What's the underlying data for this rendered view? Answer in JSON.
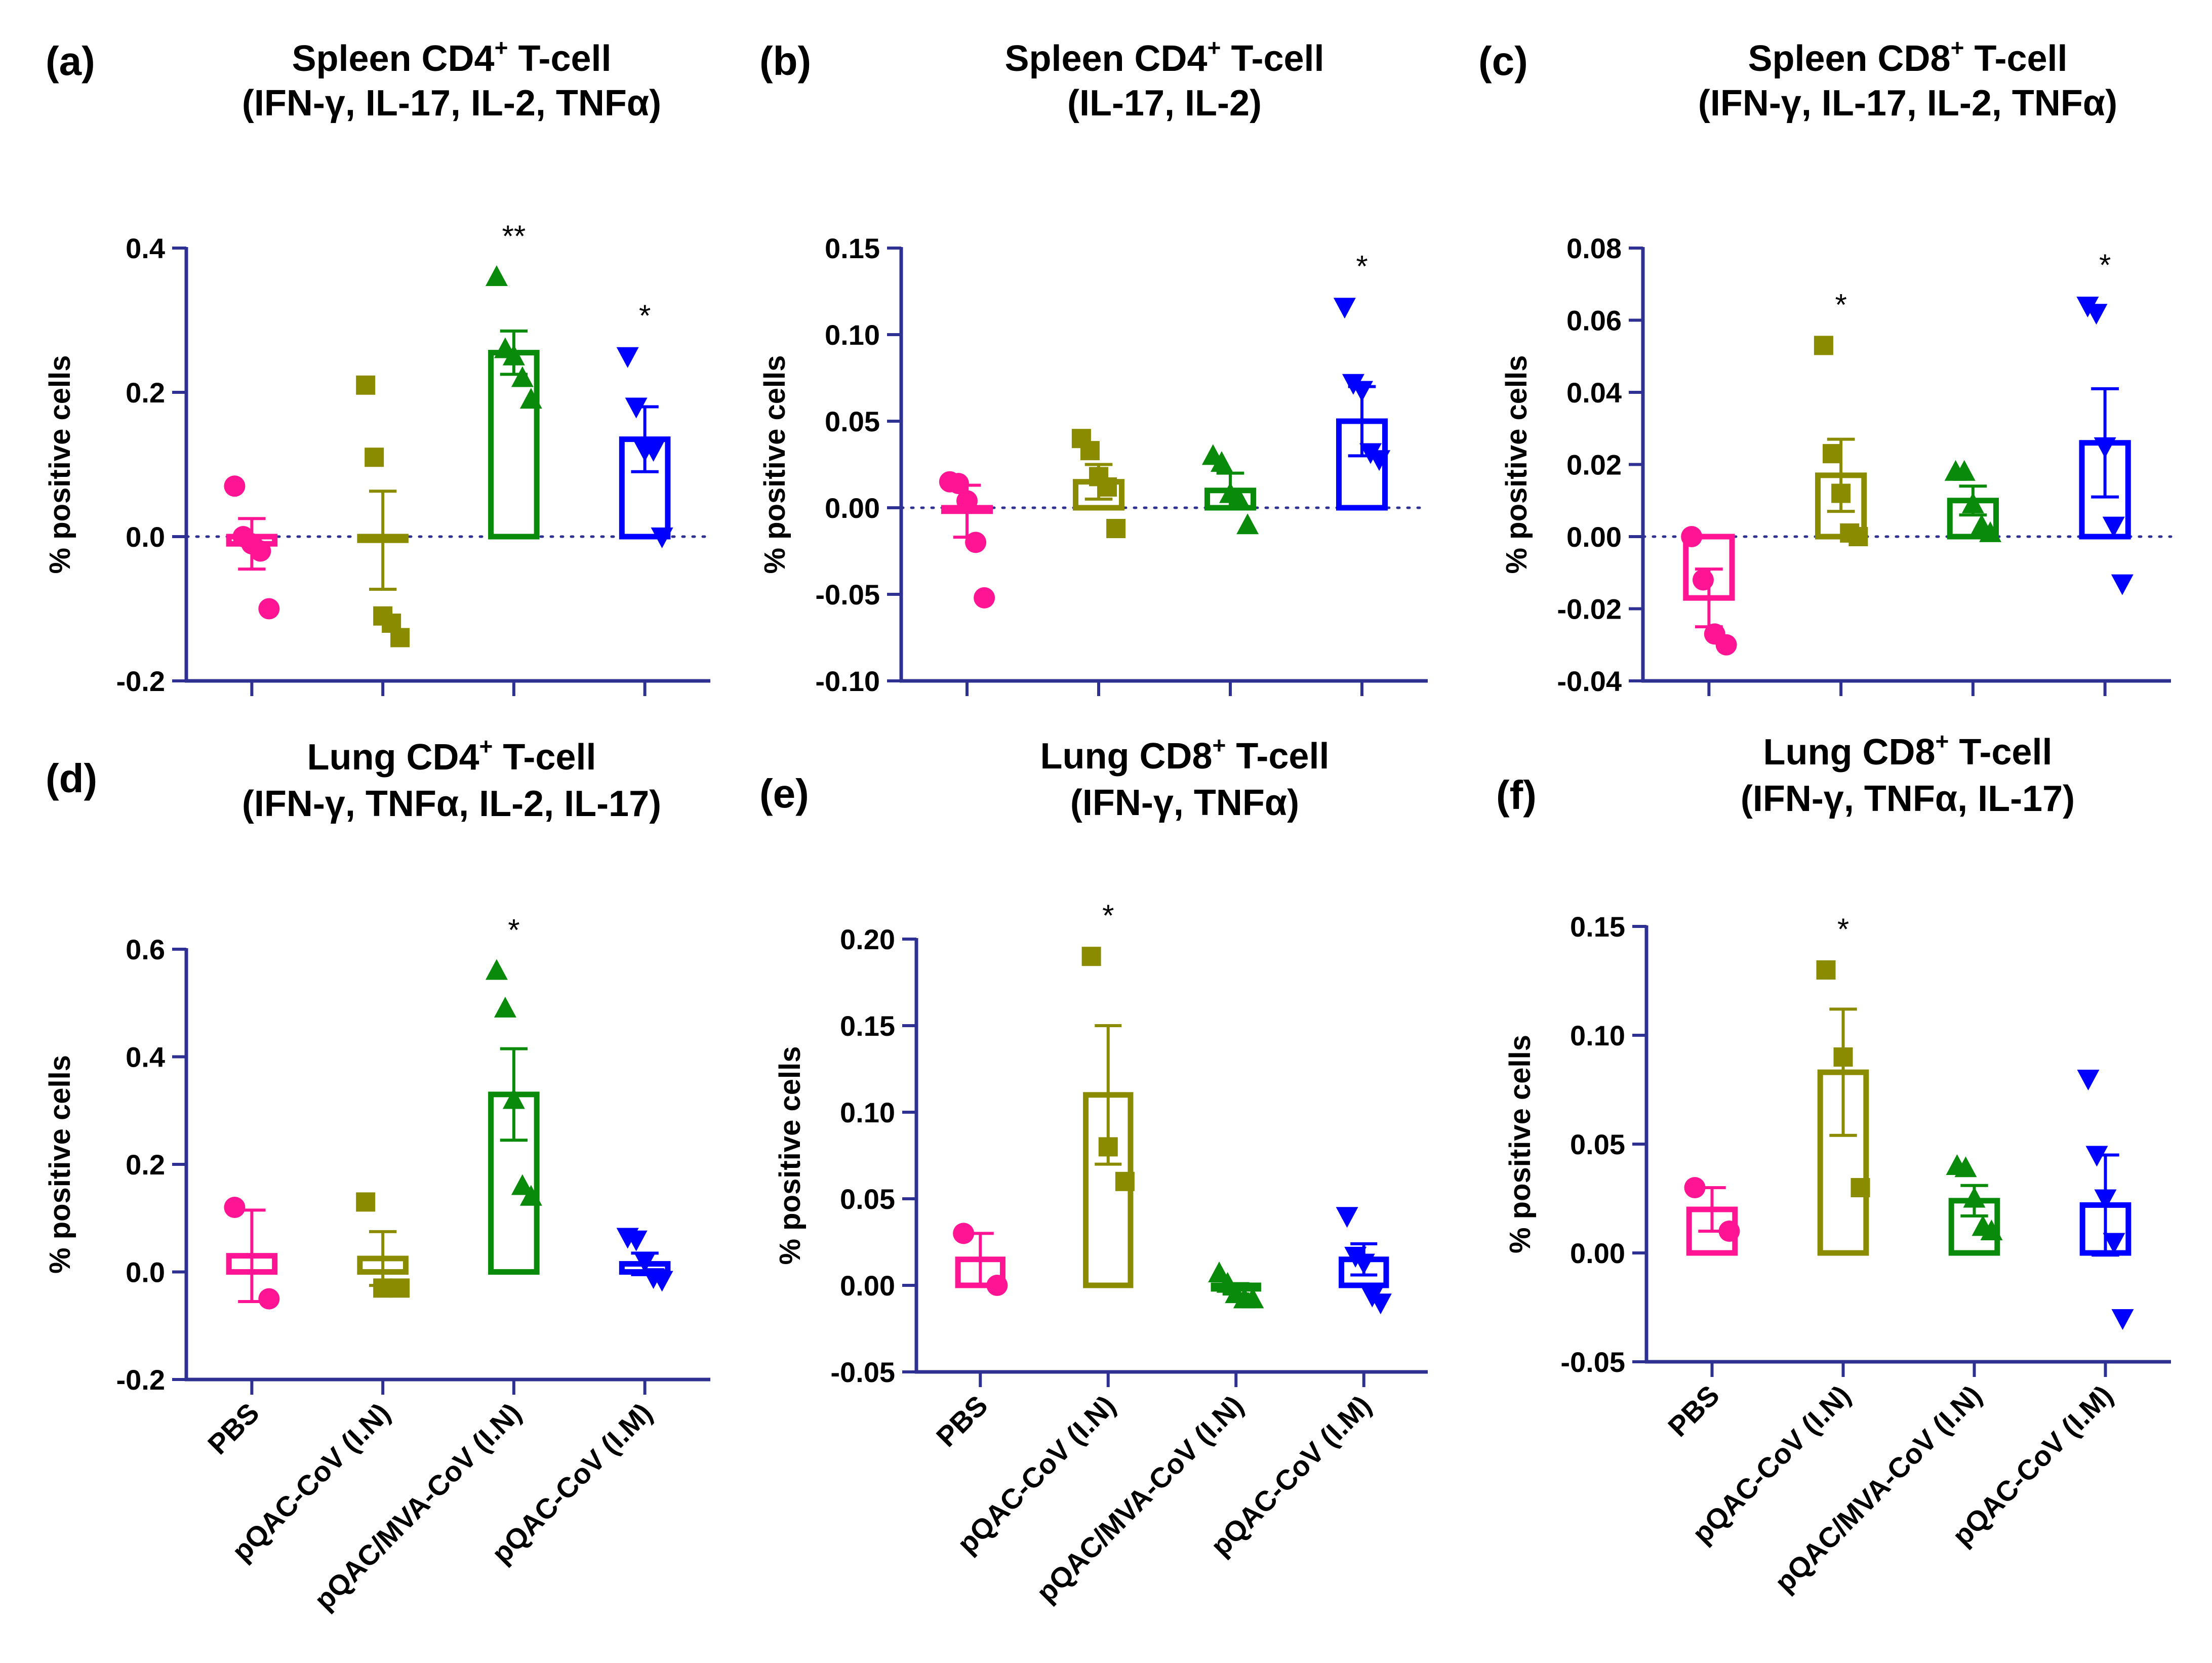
{
  "figure": {
    "x_categories": [
      "PBS",
      "pQAC-CoV (I.N)",
      "pQAC/MVA-CoV (I.N)",
      "pQAC-CoV (I.M)"
    ],
    "colors": [
      "#ff1493",
      "#8b8b00",
      "#0a8a0a",
      "#0000ff"
    ],
    "markers": [
      "circle",
      "square",
      "triangle-up",
      "triangle-down"
    ],
    "axis_color": "#2e3192",
    "ylabel": "% positive cells"
  },
  "chart_data": [
    {
      "id": "a",
      "letter": "(a)",
      "type": "bar",
      "title_line1": {
        "pre": "Spleen CD4",
        "sup": "+",
        "post": " T-cell"
      },
      "title_line2": "(IFN-γ, IL-17, IL-2, TNFα)",
      "ylabel": "% positive cells",
      "ylim": [
        -0.2,
        0.4
      ],
      "yticks": [
        -0.2,
        0.0,
        0.2,
        0.4
      ],
      "ytick_labels": [
        "-0.2",
        "0.0",
        "0.2",
        "0.4"
      ],
      "zero_line": true,
      "show_category_labels": false,
      "bars": [
        {
          "category": "PBS",
          "mean": -0.01,
          "sem": 0.035,
          "points": [
            0.07,
            0.0,
            -0.01,
            -0.02,
            -0.1
          ],
          "sig": ""
        },
        {
          "category": "pQAC-CoV (I.N)",
          "mean": -0.005,
          "sem": 0.068,
          "points": [
            0.21,
            0.11,
            -0.11,
            -0.12,
            -0.14
          ],
          "sig": ""
        },
        {
          "category": "pQAC/MVA-CoV (I.N)",
          "mean": 0.255,
          "sem": 0.03,
          "points": [
            0.36,
            0.26,
            0.25,
            0.22,
            0.19
          ],
          "sig": "**"
        },
        {
          "category": "pQAC-CoV (I.M)",
          "mean": 0.135,
          "sem": 0.045,
          "points": [
            0.25,
            0.18,
            0.12,
            0.12,
            0.0
          ],
          "sig": "*"
        }
      ]
    },
    {
      "id": "b",
      "letter": "(b)",
      "type": "bar",
      "title_line1": {
        "pre": "Spleen CD4",
        "sup": "+",
        "post": " T-cell"
      },
      "title_line2": "(IL-17, IL-2)",
      "ylabel": "% positive cells",
      "ylim": [
        -0.1,
        0.15
      ],
      "yticks": [
        -0.1,
        -0.05,
        0.0,
        0.05,
        0.1,
        0.15
      ],
      "ytick_labels": [
        "-0.10",
        "-0.05",
        "0.00",
        "0.05",
        "0.10",
        "0.15"
      ],
      "zero_line": true,
      "show_category_labels": false,
      "bars": [
        {
          "category": "PBS",
          "mean": -0.002,
          "sem": 0.015,
          "points": [
            0.015,
            0.014,
            0.004,
            -0.02,
            -0.052
          ],
          "sig": ""
        },
        {
          "category": "pQAC-CoV (I.N)",
          "mean": 0.015,
          "sem": 0.01,
          "points": [
            0.04,
            0.033,
            0.018,
            0.012,
            -0.012
          ],
          "sig": ""
        },
        {
          "category": "pQAC/MVA-CoV (I.N)",
          "mean": 0.01,
          "sem": 0.01,
          "points": [
            0.03,
            0.026,
            0.008,
            0.005,
            -0.01
          ],
          "sig": ""
        },
        {
          "category": "pQAC-CoV (I.M)",
          "mean": 0.05,
          "sem": 0.02,
          "points": [
            0.116,
            0.072,
            0.068,
            0.032,
            0.028
          ],
          "sig": "*"
        }
      ]
    },
    {
      "id": "c",
      "letter": "(c)",
      "type": "bar",
      "title_line1": {
        "pre": "Spleen CD8",
        "sup": "+",
        "post": " T-cell"
      },
      "title_line2": "(IFN-γ, IL-17, IL-2, TNFα)",
      "ylabel": "% positive cells",
      "ylim": [
        -0.04,
        0.08
      ],
      "yticks": [
        -0.04,
        -0.02,
        0.0,
        0.02,
        0.04,
        0.06,
        0.08
      ],
      "ytick_labels": [
        "-0.04",
        "-0.02",
        "0.00",
        "0.02",
        "0.04",
        "0.06",
        "0.08"
      ],
      "zero_line": true,
      "show_category_labels": false,
      "bars": [
        {
          "category": "PBS",
          "mean": -0.017,
          "sem": 0.008,
          "points": [
            0.0,
            -0.012,
            -0.027,
            -0.03
          ],
          "sig": ""
        },
        {
          "category": "pQAC-CoV (I.N)",
          "mean": 0.017,
          "sem": 0.01,
          "points": [
            0.053,
            0.023,
            0.012,
            0.001,
            0.0
          ],
          "sig": "*"
        },
        {
          "category": "pQAC/MVA-CoV (I.N)",
          "mean": 0.01,
          "sem": 0.004,
          "points": [
            0.018,
            0.018,
            0.009,
            0.003,
            0.001
          ],
          "sig": ""
        },
        {
          "category": "pQAC-CoV (I.M)",
          "mean": 0.026,
          "sem": 0.015,
          "points": [
            0.064,
            0.062,
            0.025,
            0.003,
            -0.013
          ],
          "sig": "*"
        }
      ]
    },
    {
      "id": "d",
      "letter": "(d)",
      "type": "bar",
      "title_line1": {
        "pre": "Lung CD4",
        "sup": "+",
        "post": " T-cell"
      },
      "title_line2": "(IFN-γ, TNFα, IL-2, IL-17)",
      "ylabel": "% positive cells",
      "ylim": [
        -0.2,
        0.6
      ],
      "yticks": [
        -0.2,
        0.0,
        0.2,
        0.4,
        0.6
      ],
      "ytick_labels": [
        "-0.2",
        "0.0",
        "0.2",
        "0.4",
        "0.6"
      ],
      "zero_line": false,
      "show_category_labels": true,
      "bars": [
        {
          "category": "PBS",
          "mean": 0.03,
          "sem": 0.085,
          "points": [
            0.12,
            -0.05
          ],
          "sig": ""
        },
        {
          "category": "pQAC-CoV (I.N)",
          "mean": 0.025,
          "sem": 0.05,
          "points": [
            0.13,
            -0.03,
            -0.03
          ],
          "sig": ""
        },
        {
          "category": "pQAC/MVA-CoV (I.N)",
          "mean": 0.33,
          "sem": 0.085,
          "points": [
            0.56,
            0.49,
            0.32,
            0.16,
            0.14
          ],
          "sig": "*"
        },
        {
          "category": "pQAC-CoV (I.M)",
          "mean": 0.015,
          "sem": 0.02,
          "points": [
            0.065,
            0.06,
            0.02,
            -0.01,
            -0.015
          ],
          "sig": ""
        }
      ]
    },
    {
      "id": "e",
      "letter": "(e)",
      "type": "bar",
      "title_line1": {
        "pre": "Lung CD8",
        "sup": "+",
        "post": " T-cell"
      },
      "title_line2": "(IFN-γ, TNFα)",
      "ylabel": "% positive cells",
      "ylim": [
        -0.05,
        0.2
      ],
      "yticks": [
        -0.05,
        0.0,
        0.05,
        0.1,
        0.15,
        0.2
      ],
      "ytick_labels": [
        "-0.05",
        "0.00",
        "0.05",
        "0.10",
        "0.15",
        "0.20"
      ],
      "zero_line": false,
      "show_category_labels": true,
      "bars": [
        {
          "category": "PBS",
          "mean": 0.015,
          "sem": 0.015,
          "points": [
            0.03,
            0.0
          ],
          "sig": ""
        },
        {
          "category": "pQAC-CoV (I.N)",
          "mean": 0.11,
          "sem": 0.04,
          "points": [
            0.19,
            0.08,
            0.06
          ],
          "sig": "*"
        },
        {
          "category": "pQAC/MVA-CoV (I.N)",
          "mean": -0.002,
          "sem": 0.003,
          "points": [
            0.007,
            0.001,
            -0.005,
            -0.008,
            -0.008
          ],
          "sig": ""
        },
        {
          "category": "pQAC-CoV (I.M)",
          "mean": 0.015,
          "sem": 0.009,
          "points": [
            0.04,
            0.017,
            0.013,
            -0.006,
            -0.01
          ],
          "sig": ""
        }
      ]
    },
    {
      "id": "f",
      "letter": "(f)",
      "type": "bar",
      "title_line1": {
        "pre": "Lung CD8",
        "sup": "+",
        "post": " T-cell"
      },
      "title_line2": "(IFN-γ, TNFα, IL-17)",
      "ylabel": "% positive cells",
      "ylim": [
        -0.05,
        0.15
      ],
      "yticks": [
        -0.05,
        0.0,
        0.05,
        0.1,
        0.15
      ],
      "ytick_labels": [
        "-0.05",
        "0.00",
        "0.05",
        "0.10",
        "0.15"
      ],
      "zero_line": false,
      "show_category_labels": true,
      "bars": [
        {
          "category": "PBS",
          "mean": 0.02,
          "sem": 0.01,
          "points": [
            0.03,
            0.01
          ],
          "sig": ""
        },
        {
          "category": "pQAC-CoV (I.N)",
          "mean": 0.083,
          "sem": 0.029,
          "points": [
            0.13,
            0.09,
            0.03
          ],
          "sig": "*"
        },
        {
          "category": "pQAC/MVA-CoV (I.N)",
          "mean": 0.024,
          "sem": 0.007,
          "points": [
            0.04,
            0.039,
            0.025,
            0.012,
            0.01
          ],
          "sig": ""
        },
        {
          "category": "pQAC-CoV (I.M)",
          "mean": 0.022,
          "sem": 0.023,
          "points": [
            0.08,
            0.045,
            0.025,
            0.005,
            -0.03
          ],
          "sig": ""
        }
      ]
    }
  ]
}
